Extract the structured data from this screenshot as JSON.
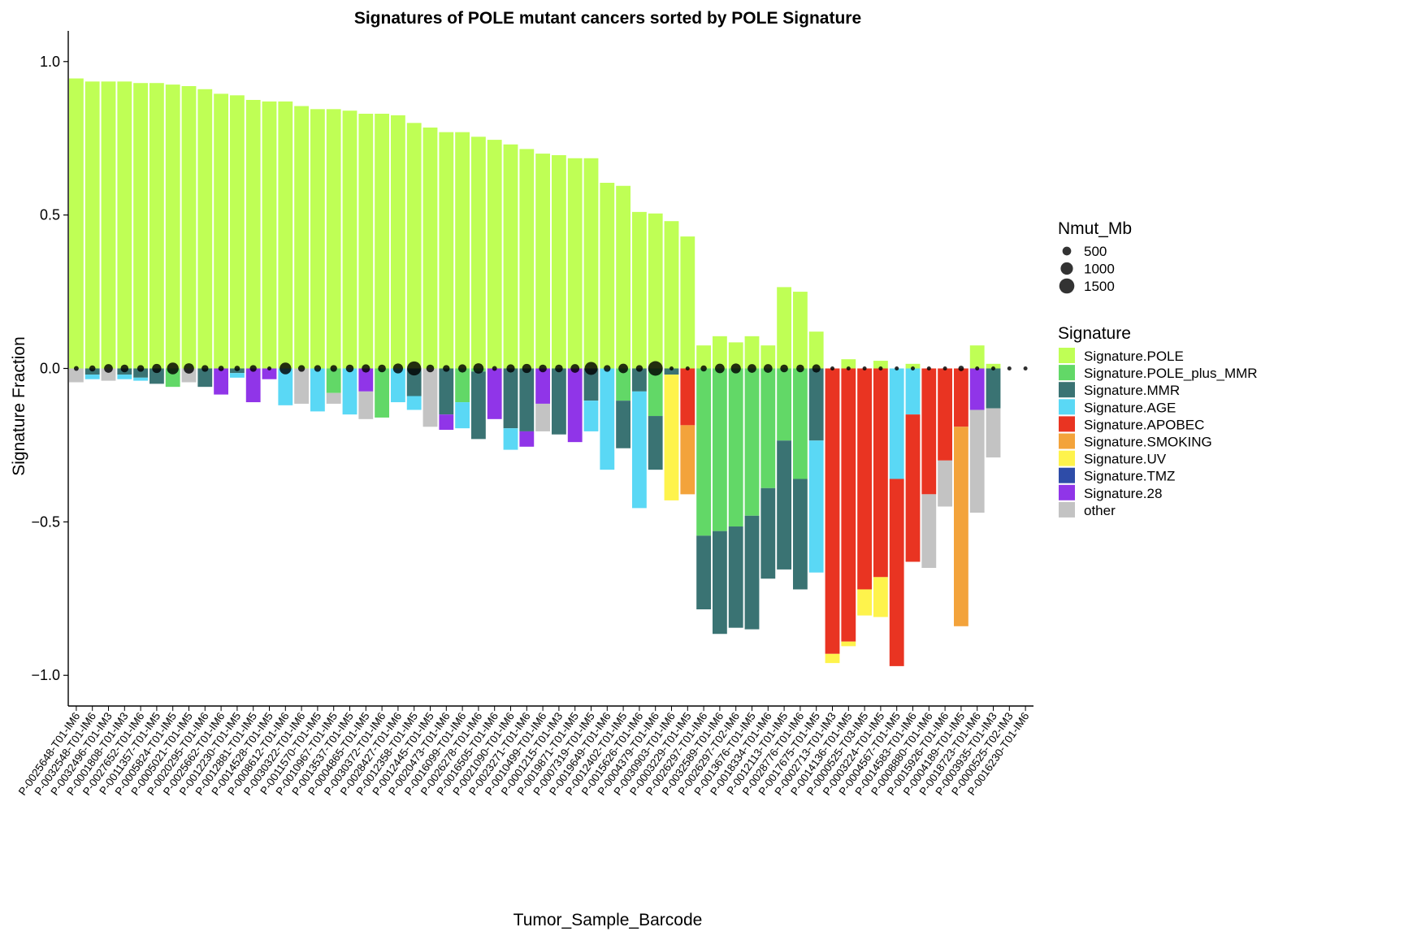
{
  "chart_data": {
    "type": "bar",
    "title": "Signatures of POLE mutant cancers sorted by POLE Signature",
    "xlabel": "Tumor_Sample_Barcode",
    "ylabel": "Signature Fraction",
    "ylim": [
      -1.1,
      1.1
    ],
    "yticks": [
      -1.0,
      -0.5,
      0.0,
      0.5,
      1.0
    ],
    "ytick_labels": [
      "−1.0",
      "−0.5",
      "0.0",
      "0.5",
      "1.0"
    ],
    "grid": false,
    "stacking": "POLE plotted upward from 0; all other signatures stacked downward from 0 (negative fraction)",
    "legend_position": "right",
    "size_legend": {
      "title": "Nmut_Mb",
      "entries": [
        {
          "label": "500",
          "value": 500
        },
        {
          "label": "1000",
          "value": 1000
        },
        {
          "label": "1500",
          "value": 1500
        }
      ]
    },
    "color_legend": {
      "title": "Signature",
      "entries": [
        {
          "key": "POLE",
          "label": "Signature.POLE",
          "color": "#BFFF55"
        },
        {
          "key": "PM",
          "label": "Signature.POLE_plus_MMR",
          "color": "#62D867"
        },
        {
          "key": "MMR",
          "label": "Signature.MMR",
          "color": "#3A7373"
        },
        {
          "key": "AGE",
          "label": "Signature.AGE",
          "color": "#5AD8F5"
        },
        {
          "key": "APOBEC",
          "label": "Signature.APOBEC",
          "color": "#E93422"
        },
        {
          "key": "SMOKING",
          "label": "Signature.SMOKING",
          "color": "#F3A33B"
        },
        {
          "key": "UV",
          "label": "Signature.UV",
          "color": "#FEF34C"
        },
        {
          "key": "TMZ",
          "label": "Signature.TMZ",
          "color": "#2E4CA8"
        },
        {
          "key": "S28",
          "label": "Signature.28",
          "color": "#9035E8"
        },
        {
          "key": "other",
          "label": "other",
          "color": "#C3C3C3"
        }
      ]
    },
    "negative_stack_order": [
      "PM",
      "MMR",
      "AGE",
      "APOBEC",
      "SMOKING",
      "UV",
      "TMZ",
      "S28",
      "other"
    ],
    "samples": [
      {
        "id": "P-0025648-T01-IM6",
        "POLE": 0.945,
        "neg": {
          "other": 0.045
        },
        "nmut": 150
      },
      {
        "id": "P-0032548-T01-IM6",
        "POLE": 0.935,
        "neg": {
          "MMR": 0.02,
          "AGE": 0.015
        },
        "nmut": 250
      },
      {
        "id": "P-0032496-T01-IM3",
        "POLE": 0.935,
        "neg": {
          "other": 0.04
        },
        "nmut": 500
      },
      {
        "id": "P-0001808-T01-IM3",
        "POLE": 0.935,
        "neg": {
          "MMR": 0.02,
          "AGE": 0.015
        },
        "nmut": 400
      },
      {
        "id": "P-0027652-T01-IM6",
        "POLE": 0.93,
        "neg": {
          "MMR": 0.03,
          "AGE": 0.01
        },
        "nmut": 300
      },
      {
        "id": "P-0011357-T01-IM5",
        "POLE": 0.93,
        "neg": {
          "MMR": 0.05
        },
        "nmut": 550
      },
      {
        "id": "P-0005824-T01-IM5",
        "POLE": 0.925,
        "neg": {
          "PM": 0.06
        },
        "nmut": 900
      },
      {
        "id": "P-0005021-T01-IM5",
        "POLE": 0.92,
        "neg": {
          "other": 0.045
        },
        "nmut": 700
      },
      {
        "id": "P-0020295-T01-IM6",
        "POLE": 0.91,
        "neg": {
          "MMR": 0.06
        },
        "nmut": 300
      },
      {
        "id": "P-0025662-T01-IM6",
        "POLE": 0.895,
        "neg": {
          "S28": 0.085
        },
        "nmut": 200
      },
      {
        "id": "P-0012230-T01-IM5",
        "POLE": 0.89,
        "neg": {
          "MMR": 0.015,
          "AGE": 0.015
        },
        "nmut": 200
      },
      {
        "id": "P-0012881-T01-IM5",
        "POLE": 0.875,
        "neg": {
          "S28": 0.11
        },
        "nmut": 300
      },
      {
        "id": "P-0014528-T01-IM5",
        "POLE": 0.87,
        "neg": {
          "S28": 0.035
        },
        "nmut": 60
      },
      {
        "id": "P-0008612-T01-IM6",
        "POLE": 0.87,
        "neg": {
          "AGE": 0.12
        },
        "nmut": 900
      },
      {
        "id": "P-0030322-T01-IM6",
        "POLE": 0.855,
        "neg": {
          "other": 0.115
        },
        "nmut": 300
      },
      {
        "id": "P-0011570-T01-IM5",
        "POLE": 0.845,
        "neg": {
          "AGE": 0.14
        },
        "nmut": 300
      },
      {
        "id": "P-0010967-T01-IM5",
        "POLE": 0.845,
        "neg": {
          "PM": 0.08,
          "other": 0.035
        },
        "nmut": 300
      },
      {
        "id": "P-0013537-T01-IM5",
        "POLE": 0.84,
        "neg": {
          "AGE": 0.15
        },
        "nmut": 400
      },
      {
        "id": "P-0004865-T01-IM5",
        "POLE": 0.83,
        "neg": {
          "other": 0.09,
          "S28": 0.075
        },
        "nmut": 450
      },
      {
        "id": "P-0030372-T01-IM6",
        "POLE": 0.83,
        "neg": {
          "PM": 0.16
        },
        "nmut": 400
      },
      {
        "id": "P-0028427-T01-IM6",
        "POLE": 0.825,
        "neg": {
          "AGE": 0.11
        },
        "nmut": 650
      },
      {
        "id": "P-0012358-T01-IM5",
        "POLE": 0.8,
        "neg": {
          "MMR": 0.09,
          "AGE": 0.045
        },
        "nmut": 1300
      },
      {
        "id": "P-0012445-T01-IM5",
        "POLE": 0.785,
        "neg": {
          "other": 0.19
        },
        "nmut": 400
      },
      {
        "id": "P-0020473-T01-IM6",
        "POLE": 0.77,
        "neg": {
          "MMR": 0.15,
          "S28": 0.05
        },
        "nmut": 300
      },
      {
        "id": "P-0016099-T01-IM6",
        "POLE": 0.77,
        "neg": {
          "PM": 0.11,
          "AGE": 0.085
        },
        "nmut": 450
      },
      {
        "id": "P-0026278-T01-IM6",
        "POLE": 0.755,
        "neg": {
          "MMR": 0.22,
          "PM": 0.01
        },
        "nmut": 700
      },
      {
        "id": "P-0016505-T01-IM6",
        "POLE": 0.745,
        "neg": {
          "S28": 0.165
        },
        "nmut": 150
      },
      {
        "id": "P-0021090-T01-IM6",
        "POLE": 0.73,
        "neg": {
          "MMR": 0.195,
          "AGE": 0.07
        },
        "nmut": 450
      },
      {
        "id": "P-0023271-T01-IM6",
        "POLE": 0.715,
        "neg": {
          "MMR": 0.205,
          "S28": 0.05
        },
        "nmut": 550
      },
      {
        "id": "P-0010499-T01-IM6",
        "POLE": 0.7,
        "neg": {
          "S28": 0.115,
          "other": 0.09
        },
        "nmut": 400
      },
      {
        "id": "P-0001215-T01-IM3",
        "POLE": 0.695,
        "neg": {
          "MMR": 0.215
        },
        "nmut": 400
      },
      {
        "id": "P-0019871-T01-IM5",
        "POLE": 0.685,
        "neg": {
          "S28": 0.24
        },
        "nmut": 500
      },
      {
        "id": "P-0007319-T01-IM5",
        "POLE": 0.685,
        "neg": {
          "MMR": 0.105,
          "AGE": 0.1
        },
        "nmut": 1100
      },
      {
        "id": "P-0019649-T01-IM6",
        "POLE": 0.605,
        "neg": {
          "AGE": 0.33
        },
        "nmut": 300
      },
      {
        "id": "P-0012402-T01-IM5",
        "POLE": 0.595,
        "neg": {
          "MMR": 0.155,
          "PM": 0.105
        },
        "nmut": 600
      },
      {
        "id": "P-0015626-T01-IM6",
        "POLE": 0.51,
        "neg": {
          "AGE": 0.38,
          "MMR": 0.075
        },
        "nmut": 300
      },
      {
        "id": "P-0004379-T01-IM6",
        "POLE": 0.505,
        "neg": {
          "MMR": 0.175,
          "PM": 0.155
        },
        "nmut": 1400
      },
      {
        "id": "P-0030903-T01-IM6",
        "POLE": 0.48,
        "neg": {
          "UV": 0.41,
          "MMR": 0.02
        },
        "nmut": 100
      },
      {
        "id": "P-0003229-T01-IM5",
        "POLE": 0.43,
        "neg": {
          "SMOKING": 0.225,
          "APOBEC": 0.185
        },
        "nmut": 100
      },
      {
        "id": "P-0026297-T01-IM6",
        "POLE": 0.075,
        "neg": {
          "PM": 0.545,
          "MMR": 0.24
        },
        "nmut": 250
      },
      {
        "id": "P-0032589-T01-IM6",
        "POLE": 0.105,
        "neg": {
          "PM": 0.53,
          "MMR": 0.335
        },
        "nmut": 600
      },
      {
        "id": "P-0026297-T02-IM6",
        "POLE": 0.085,
        "neg": {
          "PM": 0.515,
          "MMR": 0.33
        },
        "nmut": 650
      },
      {
        "id": "P-0013676-T01-IM5",
        "POLE": 0.105,
        "neg": {
          "PM": 0.48,
          "MMR": 0.37
        },
        "nmut": 500
      },
      {
        "id": "P-0018334-T01-IM6",
        "POLE": 0.075,
        "neg": {
          "PM": 0.39,
          "MMR": 0.295
        },
        "nmut": 500
      },
      {
        "id": "P-0012113-T01-IM5",
        "POLE": 0.265,
        "neg": {
          "MMR": 0.42,
          "PM": 0.235
        },
        "nmut": 400
      },
      {
        "id": "P-0028776-T01-IM6",
        "POLE": 0.25,
        "neg": {
          "MMR": 0.36,
          "PM": 0.36
        },
        "nmut": 400
      },
      {
        "id": "P-0017675-T01-IM5",
        "POLE": 0.12,
        "neg": {
          "AGE": 0.43,
          "MMR": 0.235
        },
        "nmut": 450
      },
      {
        "id": "P-0002713-T01-IM3",
        "POLE": 0.0,
        "neg": {
          "APOBEC": 0.93,
          "UV": 0.03
        },
        "nmut": 80
      },
      {
        "id": "P-0014136-T01-IM5",
        "POLE": 0.03,
        "neg": {
          "APOBEC": 0.89,
          "UV": 0.015
        },
        "nmut": 100
      },
      {
        "id": "P-0000525-T03-IM5",
        "POLE": 0.0,
        "neg": {
          "APOBEC": 0.72,
          "UV": 0.085
        },
        "nmut": 80
      },
      {
        "id": "P-0003224-T01-IM5",
        "POLE": 0.025,
        "neg": {
          "APOBEC": 0.68,
          "UV": 0.13
        },
        "nmut": 100
      },
      {
        "id": "P-0004567-T01-IM5",
        "POLE": 0.0,
        "neg": {
          "APOBEC": 0.61,
          "AGE": 0.36
        },
        "nmut": 80
      },
      {
        "id": "P-0014583-T01-IM6",
        "POLE": 0.015,
        "neg": {
          "APOBEC": 0.48,
          "AGE": 0.15
        },
        "nmut": 80
      },
      {
        "id": "P-0008880-T01-IM6",
        "POLE": 0.0,
        "neg": {
          "APOBEC": 0.41,
          "other": 0.24
        },
        "nmut": 80
      },
      {
        "id": "P-0015926-T01-IM6",
        "POLE": 0.0,
        "neg": {
          "APOBEC": 0.3,
          "other": 0.15
        },
        "nmut": 80
      },
      {
        "id": "P-0004189-T01-IM5",
        "POLE": 0.0,
        "neg": {
          "SMOKING": 0.65,
          "APOBEC": 0.19
        },
        "nmut": 200
      },
      {
        "id": "P-0018723-T01-IM6",
        "POLE": 0.075,
        "neg": {
          "other": 0.335,
          "S28": 0.135
        },
        "nmut": 80
      },
      {
        "id": "P-0003935-T01-IM3",
        "POLE": 0.015,
        "neg": {
          "other": 0.16,
          "MMR": 0.13
        },
        "nmut": 80
      },
      {
        "id": "P-0000525-T02-IM3",
        "POLE": 0.0,
        "neg": {},
        "nmut": 50
      },
      {
        "id": "P-0016230-T01-IM6",
        "POLE": 0.0,
        "neg": {},
        "nmut": 50
      }
    ]
  }
}
